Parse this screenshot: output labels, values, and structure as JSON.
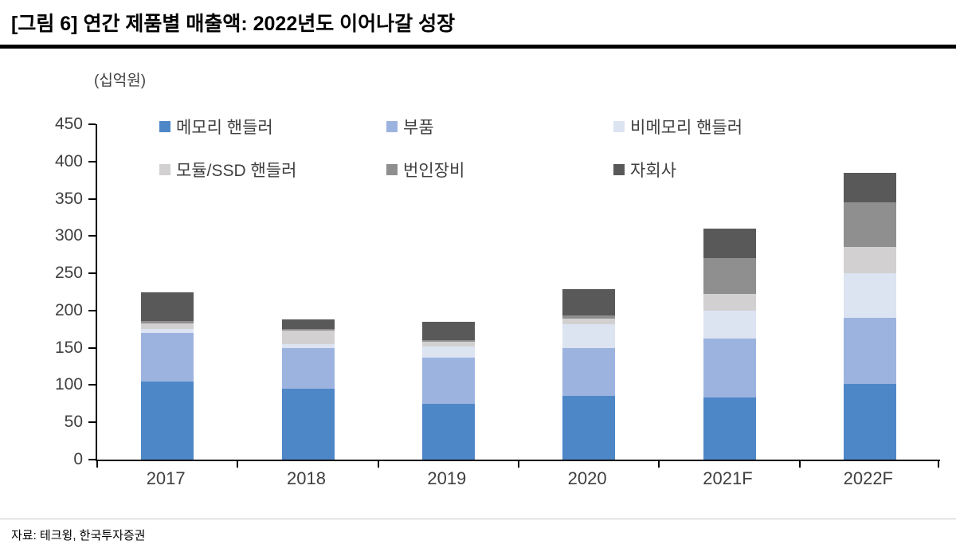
{
  "title": "[그림 6] 연간 제품별 매출액: 2022년도 이어나갈 성장",
  "source": "자료: 테크윙, 한국투자증권",
  "chart_data": {
    "type": "bar",
    "stacked": true,
    "title": "[그림 6] 연간 제품별 매출액: 2022년도 이어나갈 성장",
    "unit_label": "(십억원)",
    "xlabel": "",
    "ylabel": "십억원",
    "categories": [
      "2017",
      "2018",
      "2019",
      "2020",
      "2021F",
      "2022F"
    ],
    "series": [
      {
        "name": "메모리 핸들러",
        "color": "#4e87c8",
        "values": [
          105,
          95,
          75,
          86,
          83,
          102
        ]
      },
      {
        "name": "부품",
        "color": "#9db3df",
        "values": [
          65,
          55,
          62,
          64,
          79,
          88
        ]
      },
      {
        "name": "비메모리 핸들러",
        "color": "#dce4f2",
        "values": [
          5,
          5,
          15,
          32,
          38,
          60
        ]
      },
      {
        "name": "모듈/SSD 핸들러",
        "color": "#d2d0d0",
        "values": [
          8,
          18,
          6,
          7,
          22,
          35
        ]
      },
      {
        "name": "번인장비",
        "color": "#8f8f8f",
        "values": [
          3,
          2,
          2,
          4,
          48,
          60
        ]
      },
      {
        "name": "자회사",
        "color": "#595959",
        "values": [
          38,
          13,
          25,
          36,
          40,
          40
        ]
      }
    ],
    "totals": [
      224,
      188,
      185,
      229,
      310,
      385
    ],
    "ylim": [
      0,
      450
    ],
    "yticks": [
      0,
      50,
      100,
      150,
      200,
      250,
      300,
      350,
      400,
      450
    ],
    "legend_position": "top-inside",
    "grid": false
  }
}
